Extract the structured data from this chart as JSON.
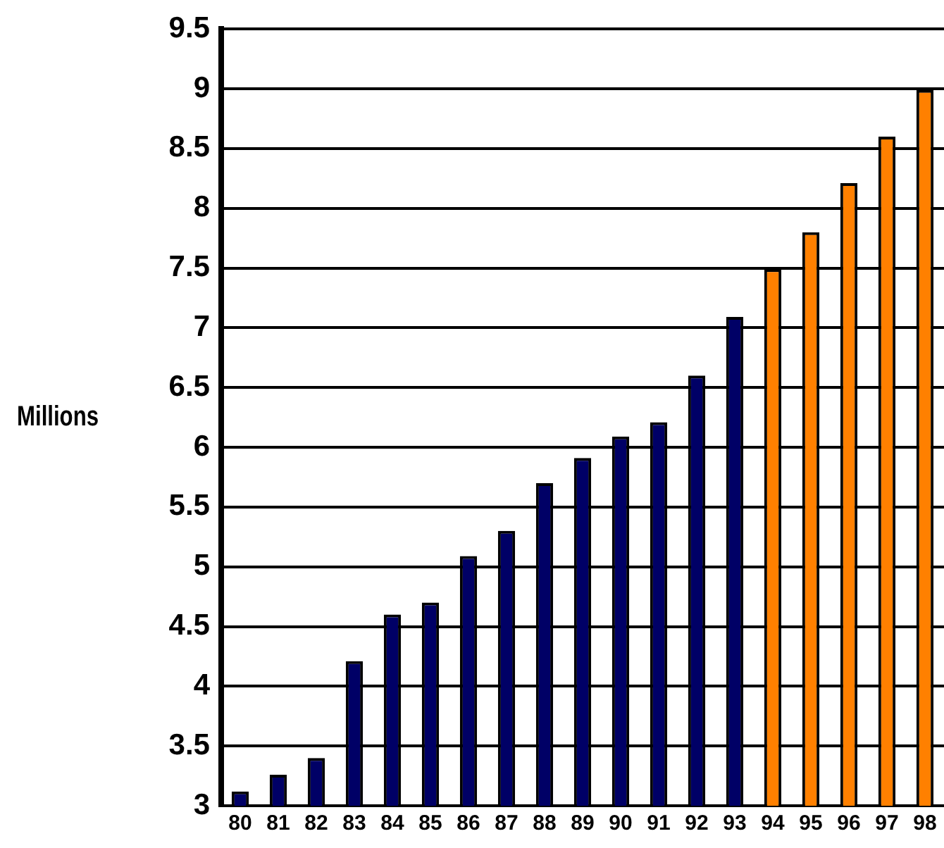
{
  "chart_data": {
    "type": "bar",
    "ylabel": "Millions",
    "categories": [
      "80",
      "81",
      "82",
      "83",
      "84",
      "85",
      "86",
      "87",
      "88",
      "89",
      "90",
      "91",
      "92",
      "93",
      "94",
      "95",
      "96",
      "97",
      "98"
    ],
    "values": [
      3.12,
      3.26,
      3.4,
      4.21,
      4.6,
      4.7,
      5.09,
      5.3,
      5.7,
      5.91,
      6.09,
      6.21,
      6.6,
      7.09,
      7.49,
      7.8,
      8.21,
      8.6,
      8.99
    ],
    "colors": [
      "#000066",
      "#000066",
      "#000066",
      "#000066",
      "#000066",
      "#000066",
      "#000066",
      "#000066",
      "#000066",
      "#000066",
      "#000066",
      "#000066",
      "#000066",
      "#000066",
      "#ff8000",
      "#ff8000",
      "#ff8000",
      "#ff8000",
      "#ff8000"
    ],
    "ylim": [
      3,
      9.5
    ],
    "yticks": [
      3,
      3.5,
      4,
      4.5,
      5,
      5.5,
      6,
      6.5,
      7,
      7.5,
      8,
      8.5,
      9,
      9.5
    ],
    "grid": "y",
    "legend": false
  }
}
